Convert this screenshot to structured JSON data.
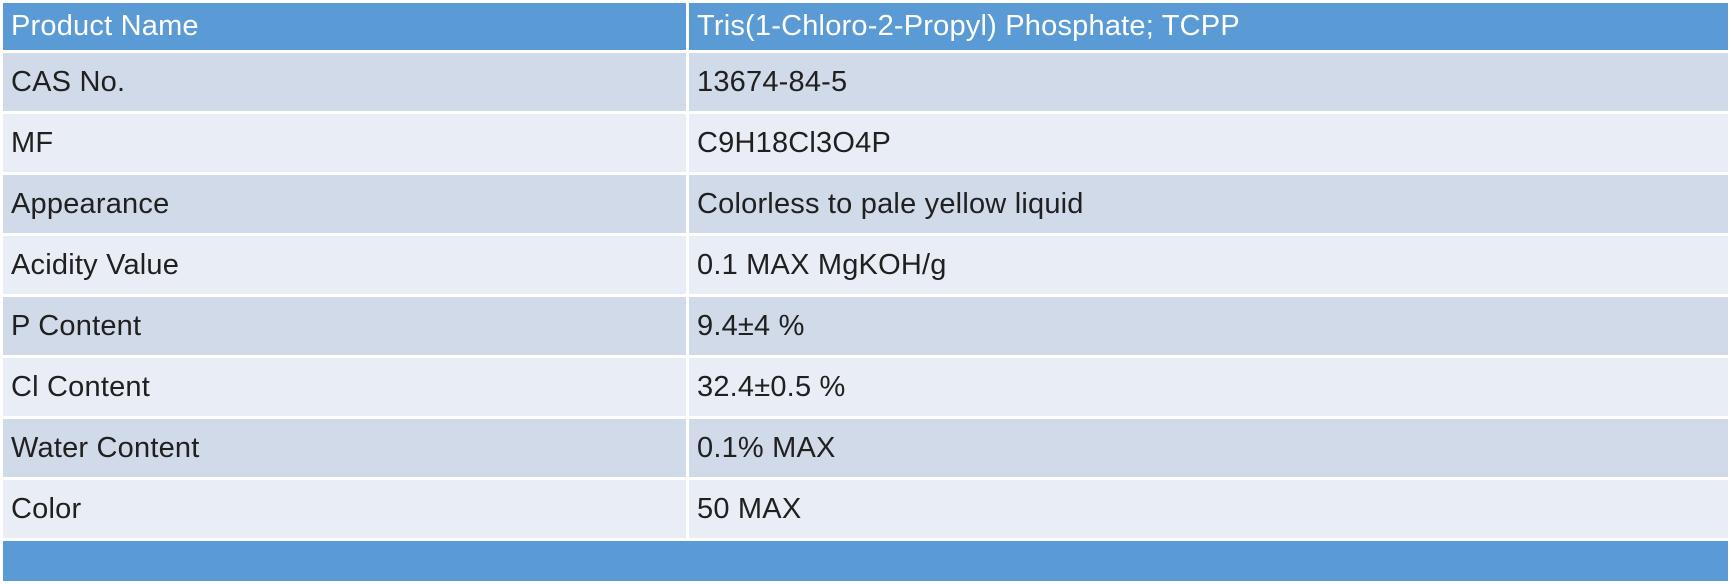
{
  "colors": {
    "header_bg": "#5B9BD5",
    "band_dark": "#D0DAE9",
    "band_light": "#E9EEF6",
    "header_text": "#FFFFFF",
    "body_text": "#202020",
    "page_bg": "#FFFFFF"
  },
  "table": {
    "header": {
      "label": "Product Name",
      "value": "Tris(1-Chloro-2-Propyl) Phosphate; TCPP"
    },
    "rows": [
      {
        "label": "CAS No.",
        "value": "13674-84-5"
      },
      {
        "label": "MF",
        "value": "C9H18Cl3O4P"
      },
      {
        "label": "Appearance",
        "value": "Colorless to pale yellow liquid"
      },
      {
        "label": "Acidity Value",
        "value": "0.1 MAX MgKOH/g"
      },
      {
        "label": "P Content",
        "value": "9.4±4 %"
      },
      {
        "label": "Cl Content",
        "value": "32.4±0.5 %"
      },
      {
        "label": "Water Content",
        "value": "0.1% MAX"
      },
      {
        "label": "Color",
        "value": "50 MAX"
      }
    ]
  }
}
